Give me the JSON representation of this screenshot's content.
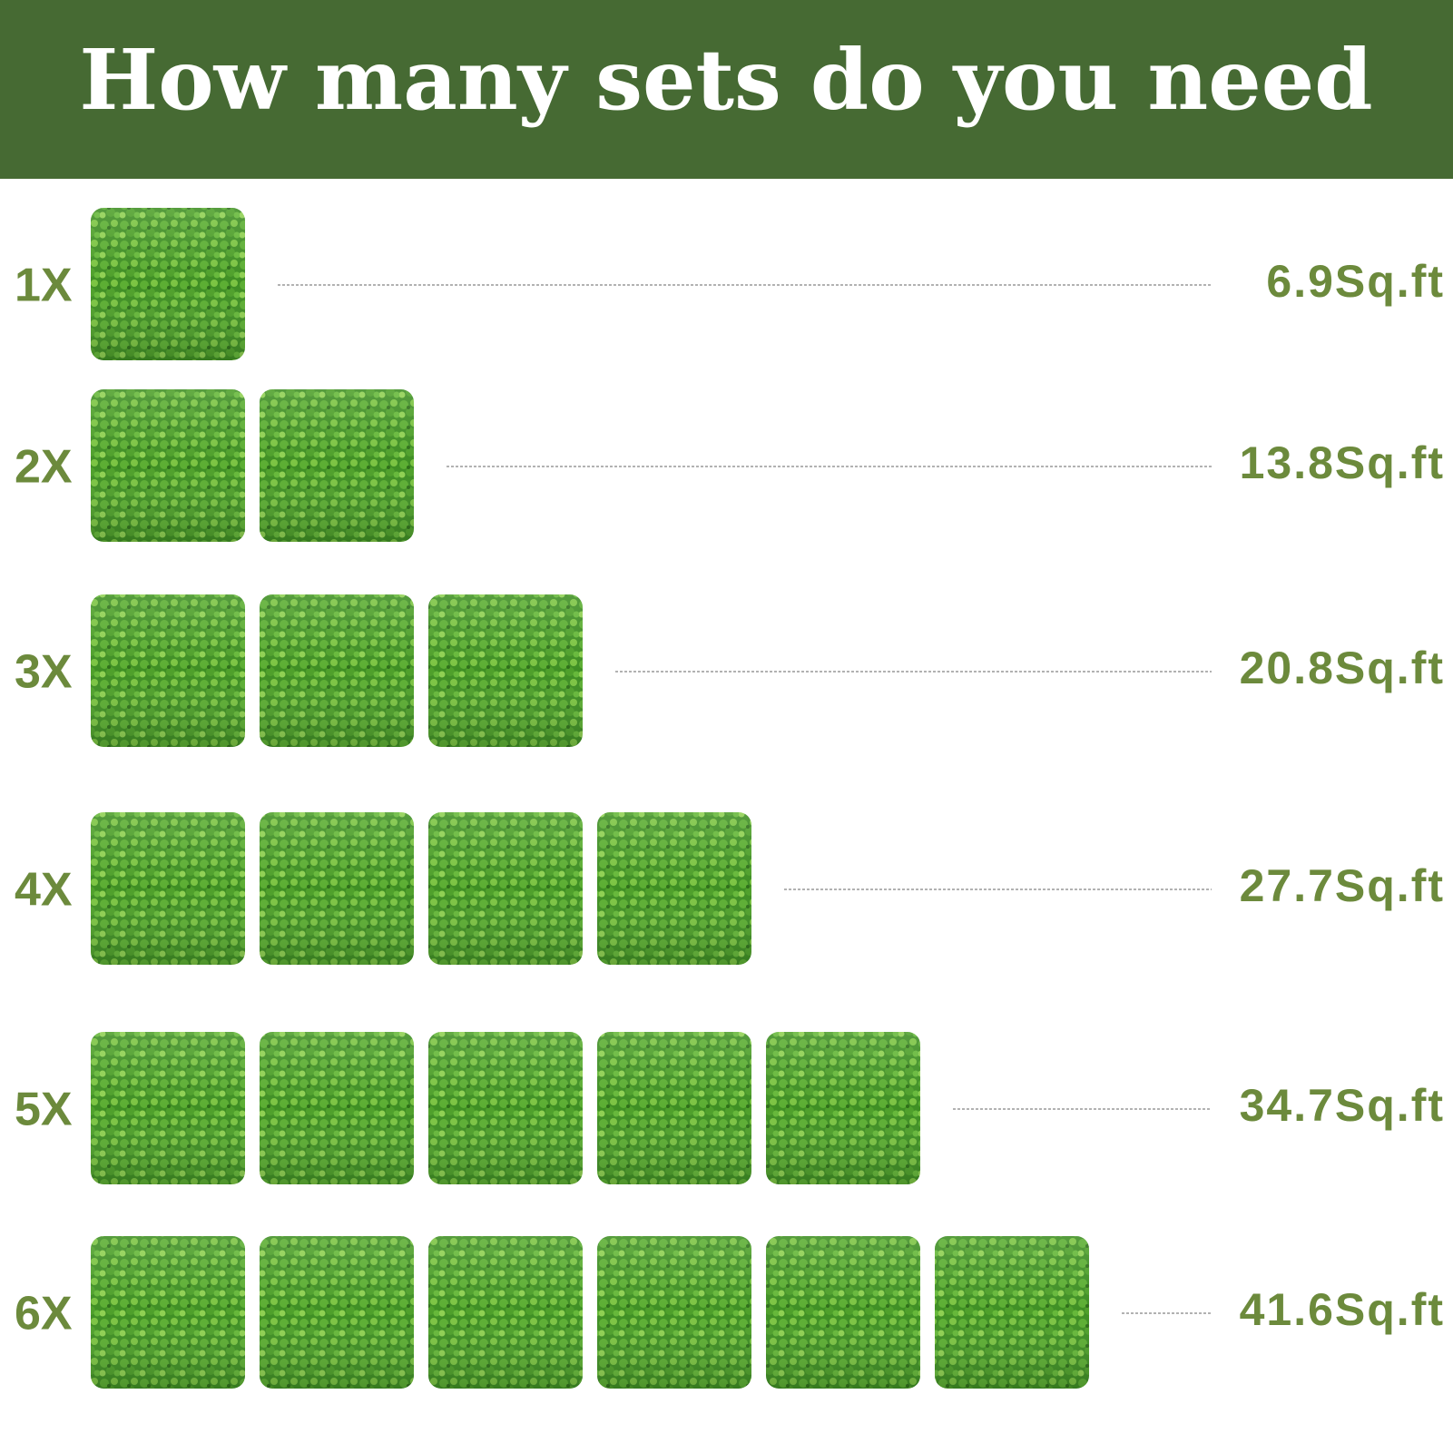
{
  "header": {
    "title": "How many sets do you need"
  },
  "rows": [
    {
      "label": "1X",
      "area": "6.9Sq.ft"
    },
    {
      "label": "2X",
      "area": "13.8Sq.ft"
    },
    {
      "label": "3X",
      "area": "20.8Sq.ft"
    },
    {
      "label": "4X",
      "area": "27.7Sq.ft"
    },
    {
      "label": "5X",
      "area": "34.7Sq.ft"
    },
    {
      "label": "6X",
      "area": "41.6Sq.ft"
    }
  ]
}
